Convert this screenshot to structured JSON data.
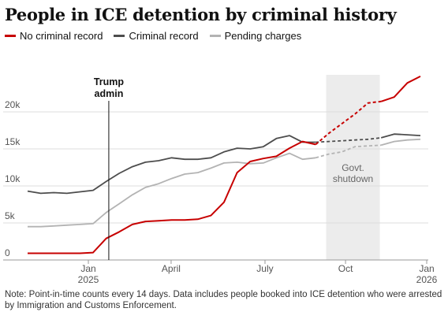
{
  "chart_data": {
    "type": "line",
    "title": "People in ICE detention by criminal history",
    "note": "Note: Point-in-time counts every 14 days. Data includes people booked into ICE detention who were arrested by Immigration and Customs Enforcement.",
    "x": [
      0,
      1,
      2,
      3,
      4,
      5,
      6,
      7,
      8,
      9,
      10,
      11,
      12,
      13,
      14,
      15,
      16,
      17,
      18,
      19,
      20,
      21,
      22,
      23,
      24,
      25,
      26,
      27,
      28,
      29,
      30
    ],
    "xlim": [
      0,
      30.6
    ],
    "xticks": [
      {
        "value": 4.64,
        "label": "Jan\n2025"
      },
      {
        "value": 10.96,
        "label": "April"
      },
      {
        "value": 18.13,
        "label": "July"
      },
      {
        "value": 24.28,
        "label": "Oct"
      },
      {
        "value": 30.48,
        "label": "Jan\n2026"
      }
    ],
    "ylim": [
      0,
      25000
    ],
    "yticks": [
      0,
      {
        "value": 5000,
        "label": "5k"
      },
      {
        "value": 10000,
        "label": "10k"
      },
      {
        "value": 15000,
        "label": "15k"
      },
      {
        "value": 20000,
        "label": "20k"
      }
    ],
    "grid": true,
    "dashed_segment": [
      22,
      27
    ],
    "series": [
      {
        "name": "No criminal record",
        "color": "#c70000",
        "values": [
          900,
          900,
          900,
          900,
          900,
          1000,
          2900,
          3800,
          4800,
          5200,
          5300,
          5400,
          5400,
          5500,
          6000,
          7800,
          11800,
          13300,
          13700,
          14000,
          15100,
          16000,
          15600,
          17100,
          18400,
          19700,
          21200,
          21400,
          22000,
          23900,
          24800
        ]
      },
      {
        "name": "Criminal record",
        "color": "#4d4d4d",
        "values": [
          9300,
          9000,
          9100,
          9000,
          9200,
          9400,
          10600,
          11700,
          12600,
          13200,
          13400,
          13800,
          13600,
          13600,
          13800,
          14600,
          15100,
          15000,
          15300,
          16400,
          16800,
          15900,
          15900,
          16000,
          16100,
          16200,
          16300,
          16500,
          17000,
          16900,
          16800
        ]
      },
      {
        "name": "Pending charges",
        "color": "#b3b3b3",
        "values": [
          4500,
          4500,
          4600,
          4700,
          4800,
          4900,
          6400,
          7600,
          8800,
          9800,
          10300,
          11000,
          11600,
          11800,
          12400,
          13100,
          13200,
          13000,
          13100,
          13800,
          14400,
          13600,
          13800,
          14300,
          14600,
          15300,
          15400,
          15500,
          16000,
          16200,
          16300
        ]
      }
    ],
    "annotations": [
      {
        "text": "Trump\nadmin",
        "x": 6.2
      },
      {
        "text": "Govt.\nshutdown",
        "range": [
          22.8,
          26.9
        ]
      }
    ]
  }
}
